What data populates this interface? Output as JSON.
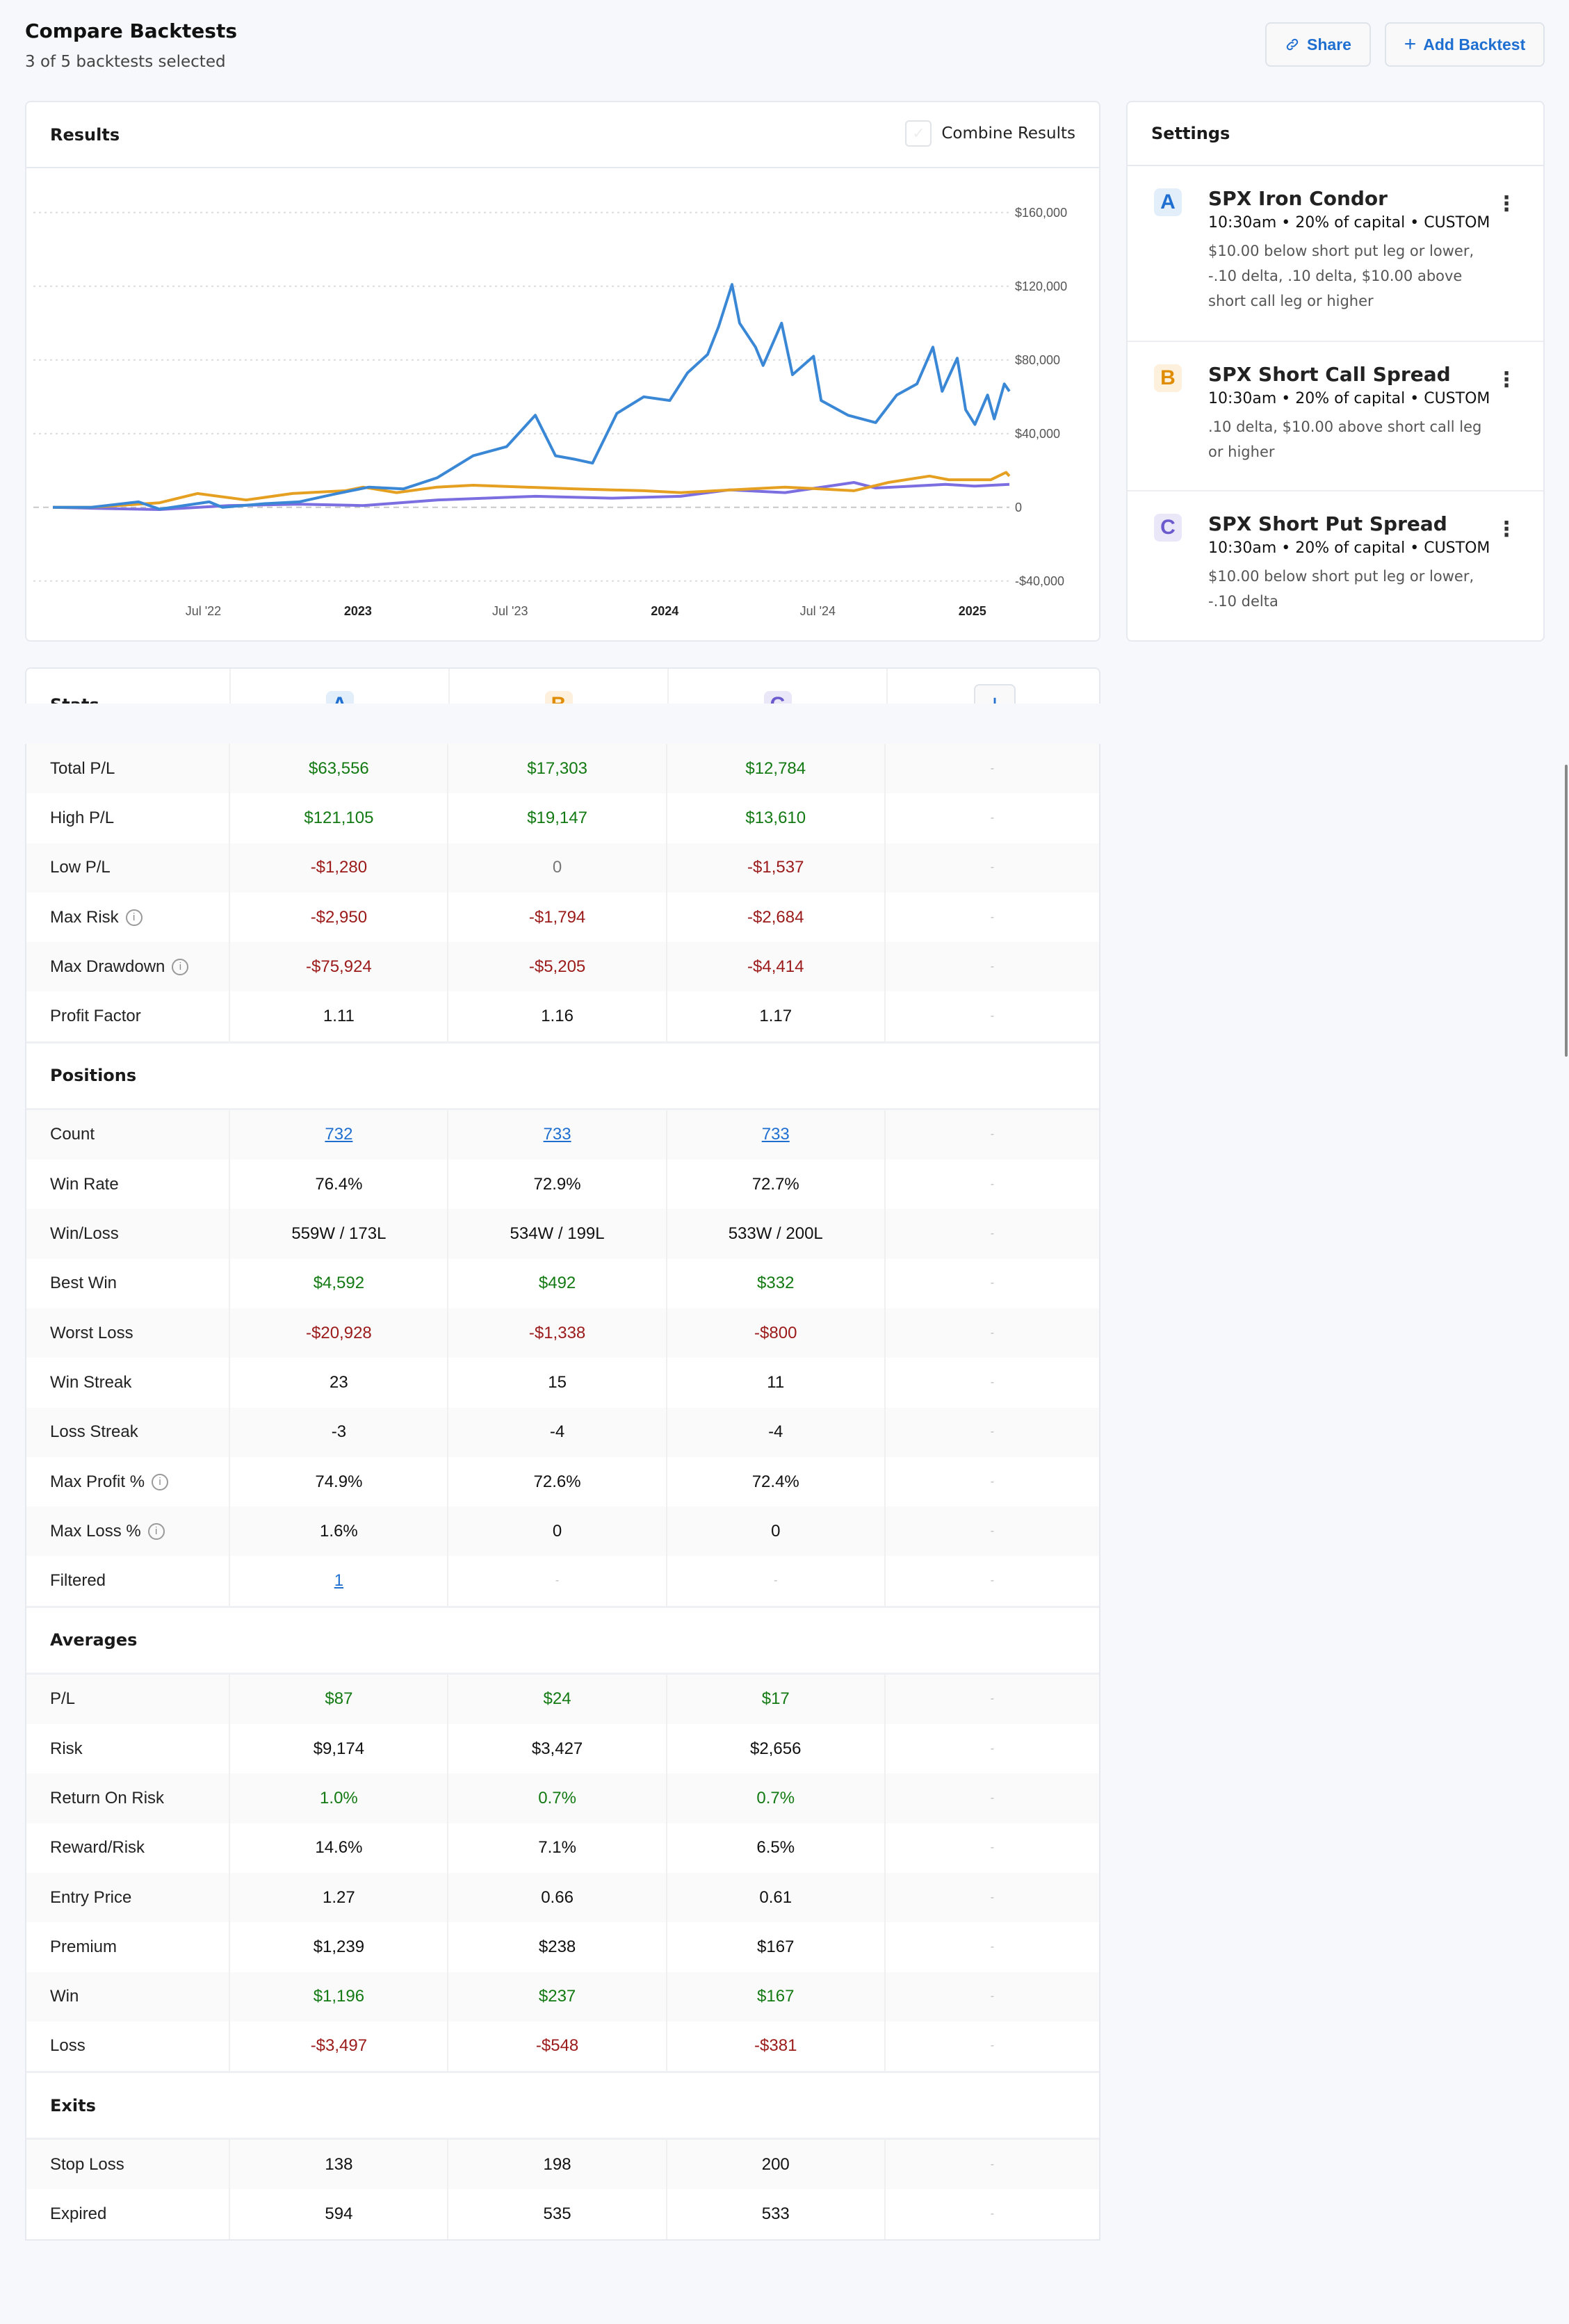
{
  "header": {
    "title": "Compare Backtests",
    "subtitle": "3 of 5 backtests selected",
    "share_label": "Share",
    "add_label": "Add Backtest",
    "share_icon": "link-icon",
    "add_icon": "plus-icon"
  },
  "results": {
    "title": "Results",
    "combine_label": "Combine Results",
    "combine_checked": false
  },
  "settings": {
    "title": "Settings",
    "items": [
      {
        "letter": "A",
        "name": "SPX Iron Condor",
        "meta": "10:30am • 20% of capital • CUSTOM",
        "desc": "$10.00 below short put leg or lower, -.10 delta, .10 delta, $10.00 above short call leg or higher",
        "color": "#1f6fd1",
        "bg": "#e3eefb"
      },
      {
        "letter": "B",
        "name": "SPX Short Call Spread",
        "meta": "10:30am • 20% of capital • CUSTOM",
        "desc": ".10 delta, $10.00 above short call leg or higher",
        "color": "#e08c00",
        "bg": "#fdf0dc"
      },
      {
        "letter": "C",
        "name": "SPX Short Put Spread",
        "meta": "10:30am • 20% of capital • CUSTOM",
        "desc": "$10.00 below short put leg or lower, -.10 delta",
        "color": "#6a5acd",
        "bg": "#e9e7f8"
      }
    ]
  },
  "stats": {
    "title": "Stats",
    "add_column_label": "+",
    "sections": [
      {
        "title": "",
        "rows": [
          {
            "label": "Total P/L",
            "values": [
              "$63,556",
              "$17,303",
              "$12,784",
              "-"
            ],
            "tones": [
              "pos",
              "pos",
              "pos",
              "dash"
            ]
          },
          {
            "label": "High P/L",
            "values": [
              "$121,105",
              "$19,147",
              "$13,610",
              "-"
            ],
            "tones": [
              "pos",
              "pos",
              "pos",
              "dash"
            ]
          },
          {
            "label": "Low P/L",
            "values": [
              "-$1,280",
              "0",
              "-$1,537",
              "-"
            ],
            "tones": [
              "neg",
              "muted",
              "neg",
              "dash"
            ]
          },
          {
            "label": "Max Risk",
            "info": true,
            "values": [
              "-$2,950",
              "-$1,794",
              "-$2,684",
              "-"
            ],
            "tones": [
              "neg",
              "neg",
              "neg",
              "dash"
            ]
          },
          {
            "label": "Max Drawdown",
            "info": true,
            "values": [
              "-$75,924",
              "-$5,205",
              "-$4,414",
              "-"
            ],
            "tones": [
              "neg",
              "neg",
              "neg",
              "dash"
            ]
          },
          {
            "label": "Profit Factor",
            "values": [
              "1.11",
              "1.16",
              "1.17",
              "-"
            ],
            "tones": [
              "neutral",
              "neutral",
              "neutral",
              "dash"
            ]
          }
        ]
      },
      {
        "title": "Positions",
        "rows": [
          {
            "label": "Count",
            "values": [
              "732",
              "733",
              "733",
              "-"
            ],
            "tones": [
              "link",
              "link",
              "link",
              "dash"
            ]
          },
          {
            "label": "Win Rate",
            "values": [
              "76.4%",
              "72.9%",
              "72.7%",
              "-"
            ],
            "tones": [
              "neutral",
              "neutral",
              "neutral",
              "dash"
            ]
          },
          {
            "label": "Win/Loss",
            "values": [
              "559W / 173L",
              "534W / 199L",
              "533W / 200L",
              "-"
            ],
            "tones": [
              "neutral",
              "neutral",
              "neutral",
              "dash"
            ]
          },
          {
            "label": "Best Win",
            "values": [
              "$4,592",
              "$492",
              "$332",
              "-"
            ],
            "tones": [
              "pos",
              "pos",
              "pos",
              "dash"
            ]
          },
          {
            "label": "Worst Loss",
            "values": [
              "-$20,928",
              "-$1,338",
              "-$800",
              "-"
            ],
            "tones": [
              "neg",
              "neg",
              "neg",
              "dash"
            ]
          },
          {
            "label": "Win Streak",
            "values": [
              "23",
              "15",
              "11",
              "-"
            ],
            "tones": [
              "neutral",
              "neutral",
              "neutral",
              "dash"
            ]
          },
          {
            "label": "Loss Streak",
            "values": [
              "-3",
              "-4",
              "-4",
              "-"
            ],
            "tones": [
              "neutral",
              "neutral",
              "neutral",
              "dash"
            ]
          },
          {
            "label": "Max Profit %",
            "info": true,
            "values": [
              "74.9%",
              "72.6%",
              "72.4%",
              "-"
            ],
            "tones": [
              "neutral",
              "neutral",
              "neutral",
              "dash"
            ]
          },
          {
            "label": "Max Loss %",
            "info": true,
            "values": [
              "1.6%",
              "0",
              "0",
              "-"
            ],
            "tones": [
              "neutral",
              "neutral",
              "neutral",
              "dash"
            ]
          },
          {
            "label": "Filtered",
            "values": [
              "1",
              "-",
              "-",
              "-"
            ],
            "tones": [
              "link",
              "dash",
              "dash",
              "dash"
            ]
          }
        ]
      },
      {
        "title": "Averages",
        "rows": [
          {
            "label": "P/L",
            "values": [
              "$87",
              "$24",
              "$17",
              "-"
            ],
            "tones": [
              "pos",
              "pos",
              "pos",
              "dash"
            ]
          },
          {
            "label": "Risk",
            "values": [
              "$9,174",
              "$3,427",
              "$2,656",
              "-"
            ],
            "tones": [
              "neutral",
              "neutral",
              "neutral",
              "dash"
            ]
          },
          {
            "label": "Return On Risk",
            "values": [
              "1.0%",
              "0.7%",
              "0.7%",
              "-"
            ],
            "tones": [
              "pos",
              "pos",
              "pos",
              "dash"
            ]
          },
          {
            "label": "Reward/Risk",
            "values": [
              "14.6%",
              "7.1%",
              "6.5%",
              "-"
            ],
            "tones": [
              "neutral",
              "neutral",
              "neutral",
              "dash"
            ]
          },
          {
            "label": "Entry Price",
            "values": [
              "1.27",
              "0.66",
              "0.61",
              "-"
            ],
            "tones": [
              "neutral",
              "neutral",
              "neutral",
              "dash"
            ]
          },
          {
            "label": "Premium",
            "values": [
              "$1,239",
              "$238",
              "$167",
              "-"
            ],
            "tones": [
              "neutral",
              "neutral",
              "neutral",
              "dash"
            ]
          },
          {
            "label": "Win",
            "values": [
              "$1,196",
              "$237",
              "$167",
              "-"
            ],
            "tones": [
              "pos",
              "pos",
              "pos",
              "dash"
            ]
          },
          {
            "label": "Loss",
            "values": [
              "-$3,497",
              "-$548",
              "-$381",
              "-"
            ],
            "tones": [
              "neg",
              "neg",
              "neg",
              "dash"
            ]
          }
        ]
      },
      {
        "title": "Exits",
        "rows": [
          {
            "label": "Stop Loss",
            "values": [
              "138",
              "198",
              "200",
              "-"
            ],
            "tones": [
              "neutral",
              "neutral",
              "neutral",
              "dash"
            ]
          },
          {
            "label": "Expired",
            "values": [
              "594",
              "535",
              "533",
              "-"
            ],
            "tones": [
              "neutral",
              "neutral",
              "neutral",
              "dash"
            ]
          }
        ]
      }
    ]
  },
  "chart_data": {
    "type": "line",
    "ylim": [
      -40000,
      160000
    ],
    "yticks": [
      -40000,
      0,
      40000,
      80000,
      120000,
      160000
    ],
    "ytick_labels": [
      "-$40,000",
      "0",
      "$40,000",
      "$80,000",
      "$120,000",
      "$160,000"
    ],
    "xlim": [
      "2022-01-03",
      "2025-02-14"
    ],
    "xticks": [
      {
        "date": "2022-07-01",
        "label": "Jul '22",
        "bold": false
      },
      {
        "date": "2023-01-01",
        "label": "2023",
        "bold": true
      },
      {
        "date": "2023-07-01",
        "label": "Jul '23",
        "bold": false
      },
      {
        "date": "2024-01-01",
        "label": "2024",
        "bold": true
      },
      {
        "date": "2024-07-01",
        "label": "Jul '24",
        "bold": false
      },
      {
        "date": "2025-01-01",
        "label": "2025",
        "bold": true
      }
    ],
    "grid": true,
    "series": [
      {
        "key": "A",
        "color": "#3a87d6",
        "points": [
          [
            "2022-01-03",
            0
          ],
          [
            "2022-02-17",
            0
          ],
          [
            "2022-04-15",
            3000
          ],
          [
            "2022-05-10",
            -1000
          ],
          [
            "2022-07-08",
            3000
          ],
          [
            "2022-07-24",
            0
          ],
          [
            "2022-09-12",
            2000
          ],
          [
            "2022-10-23",
            3000
          ],
          [
            "2022-12-02",
            7000
          ],
          [
            "2023-01-14",
            11000
          ],
          [
            "2023-02-24",
            10000
          ],
          [
            "2023-04-05",
            16000
          ],
          [
            "2023-05-18",
            28000
          ],
          [
            "2023-06-27",
            33000
          ],
          [
            "2023-07-31",
            50000
          ],
          [
            "2023-08-24",
            28000
          ],
          [
            "2023-09-17",
            26000
          ],
          [
            "2023-10-07",
            24000
          ],
          [
            "2023-11-05",
            51000
          ],
          [
            "2023-12-07",
            60000
          ],
          [
            "2024-01-07",
            58000
          ],
          [
            "2024-01-28",
            73000
          ],
          [
            "2024-02-21",
            83000
          ],
          [
            "2024-03-05",
            98000
          ],
          [
            "2024-03-21",
            121000
          ],
          [
            "2024-03-30",
            100000
          ],
          [
            "2024-04-18",
            87000
          ],
          [
            "2024-04-27",
            77000
          ],
          [
            "2024-05-19",
            100000
          ],
          [
            "2024-06-01",
            72000
          ],
          [
            "2024-06-26",
            82000
          ],
          [
            "2024-07-05",
            58000
          ],
          [
            "2024-08-06",
            50000
          ],
          [
            "2024-09-08",
            46000
          ],
          [
            "2024-10-03",
            61000
          ],
          [
            "2024-10-27",
            67000
          ],
          [
            "2024-11-15",
            87000
          ],
          [
            "2024-11-26",
            63000
          ],
          [
            "2024-12-14",
            81000
          ],
          [
            "2024-12-24",
            53000
          ],
          [
            "2025-01-04",
            45000
          ],
          [
            "2025-01-19",
            61000
          ],
          [
            "2025-01-27",
            48000
          ],
          [
            "2025-02-08",
            67000
          ],
          [
            "2025-02-14",
            63000
          ]
        ]
      },
      {
        "key": "B",
        "color": "#e6a021",
        "points": [
          [
            "2022-01-03",
            0
          ],
          [
            "2022-02-17",
            0
          ],
          [
            "2022-05-10",
            2500
          ],
          [
            "2022-06-24",
            7500
          ],
          [
            "2022-08-21",
            4000
          ],
          [
            "2022-10-15",
            7500
          ],
          [
            "2022-12-17",
            9000
          ],
          [
            "2023-01-07",
            11000
          ],
          [
            "2023-02-16",
            8000
          ],
          [
            "2023-04-05",
            11000
          ],
          [
            "2023-05-18",
            12000
          ],
          [
            "2023-09-17",
            10000
          ],
          [
            "2023-12-07",
            9000
          ],
          [
            "2024-01-20",
            8000
          ],
          [
            "2024-04-12",
            10000
          ],
          [
            "2024-05-23",
            11000
          ],
          [
            "2024-08-13",
            9000
          ],
          [
            "2024-09-23",
            13500
          ],
          [
            "2024-11-11",
            17000
          ],
          [
            "2024-12-04",
            15000
          ],
          [
            "2025-01-23",
            15000
          ],
          [
            "2025-02-10",
            19000
          ],
          [
            "2025-02-14",
            17000
          ]
        ]
      },
      {
        "key": "C",
        "color": "#7b6ee0",
        "points": [
          [
            "2022-01-03",
            0
          ],
          [
            "2022-02-17",
            -500
          ],
          [
            "2022-05-10",
            -1200
          ],
          [
            "2022-07-31",
            1000
          ],
          [
            "2022-10-23",
            1700
          ],
          [
            "2023-01-07",
            1000
          ],
          [
            "2023-04-05",
            4000
          ],
          [
            "2023-07-31",
            6000
          ],
          [
            "2023-10-30",
            5000
          ],
          [
            "2024-01-20",
            6000
          ],
          [
            "2024-03-18",
            9500
          ],
          [
            "2024-05-23",
            8000
          ],
          [
            "2024-08-13",
            13500
          ],
          [
            "2024-09-08",
            10500
          ],
          [
            "2024-11-30",
            12500
          ],
          [
            "2025-01-04",
            11500
          ],
          [
            "2025-02-14",
            12500
          ]
        ]
      }
    ]
  }
}
